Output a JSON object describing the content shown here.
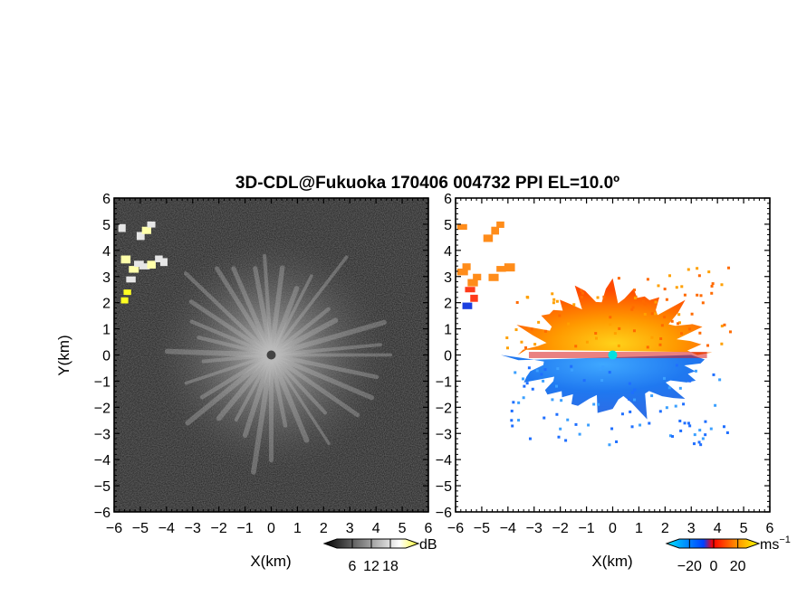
{
  "chart_data": [
    {
      "type": "heatmap",
      "panel": "left",
      "title": "3D-CDL@Fukuoka 170406 004732 PPI EL=10.0º",
      "xlabel": "X(km)",
      "ylabel": "Y(km)",
      "xlim": [
        -6,
        6
      ],
      "ylim": [
        -6,
        6
      ],
      "xticks": [
        "−6",
        "−5",
        "−4",
        "−3",
        "−2",
        "−1",
        "0",
        "1",
        "2",
        "3",
        "4",
        "5",
        "6"
      ],
      "yticks": [
        "−6",
        "−5",
        "−4",
        "−3",
        "−2",
        "−1",
        "0",
        "1",
        "2",
        "3",
        "4",
        "5",
        "6"
      ],
      "colorbar": {
        "unit": "dB",
        "ticks": [
          "6",
          "12",
          "18"
        ],
        "values": [
          6,
          12,
          18
        ],
        "range": [
          0,
          24
        ],
        "colors": [
          "#000000",
          "#ffffff",
          "#ffff33"
        ]
      },
      "features": [
        {
          "kind": "radial-echo",
          "center": [
            0,
            0
          ],
          "radius_km": 4.5
        },
        {
          "kind": "cluster",
          "points": [
            [
              -5.6,
              2.1
            ],
            [
              -5.5,
              2.4
            ],
            [
              -5.4,
              2.9
            ],
            [
              -5.3,
              3.3
            ],
            [
              -5.1,
              3.5
            ],
            [
              -4.9,
              3.4
            ],
            [
              -4.6,
              3.5
            ],
            [
              -4.3,
              3.7
            ],
            [
              -4.1,
              3.6
            ],
            [
              -5.6,
              3.7
            ],
            [
              -5.7,
              4.9
            ],
            [
              -5.0,
              4.6
            ],
            [
              -4.8,
              4.8
            ],
            [
              -4.6,
              5.0
            ]
          ]
        }
      ]
    },
    {
      "type": "heatmap",
      "panel": "right",
      "xlabel": "X(km)",
      "xlim": [
        -6,
        6
      ],
      "ylim": [
        -6,
        6
      ],
      "xticks": [
        "−6",
        "−5",
        "−4",
        "−3",
        "−2",
        "−1",
        "0",
        "1",
        "2",
        "3",
        "4",
        "5",
        "6"
      ],
      "yticks": [
        "6",
        "5",
        "4",
        "3",
        "2",
        "1",
        "0",
        "−1",
        "−2",
        "−3",
        "−4",
        "−5",
        "−6"
      ],
      "colorbar": {
        "unit": "ms",
        "unit_exponent": "−1",
        "ticks": [
          "−20",
          "0",
          "20"
        ],
        "values": [
          -20,
          0,
          20
        ],
        "range": [
          -30,
          30
        ],
        "colors": [
          "#00ffff",
          "#0040ff",
          "#ff0000",
          "#ffa500",
          "#ffff00"
        ]
      },
      "features": [
        {
          "kind": "positive-lobe",
          "center": [
            0,
            1
          ],
          "extent_km": [
            [
              -3.5,
              4.5
            ],
            [
              0,
              3.3
            ]
          ],
          "value": 15
        },
        {
          "kind": "negative-lobe",
          "center": [
            0,
            -1
          ],
          "extent_km": [
            [
              -4,
              4.5
            ],
            [
              -3.3,
              0
            ]
          ],
          "value": -15
        },
        {
          "kind": "cluster",
          "points": [
            [
              -5.8,
              3.2
            ],
            [
              -5.6,
              3.4
            ],
            [
              -5.4,
              2.8
            ],
            [
              -5.5,
              2.5
            ],
            [
              -5.3,
              2.2
            ],
            [
              -5.8,
              4.9
            ],
            [
              -5.2,
              3.0
            ],
            [
              -4.6,
              3.0
            ],
            [
              -4.3,
              3.3
            ],
            [
              -4.0,
              3.4
            ],
            [
              -4.8,
              4.5
            ],
            [
              -4.5,
              4.8
            ],
            [
              -4.3,
              5.0
            ],
            [
              -5.6,
              1.9
            ]
          ],
          "value": 14
        }
      ]
    }
  ]
}
